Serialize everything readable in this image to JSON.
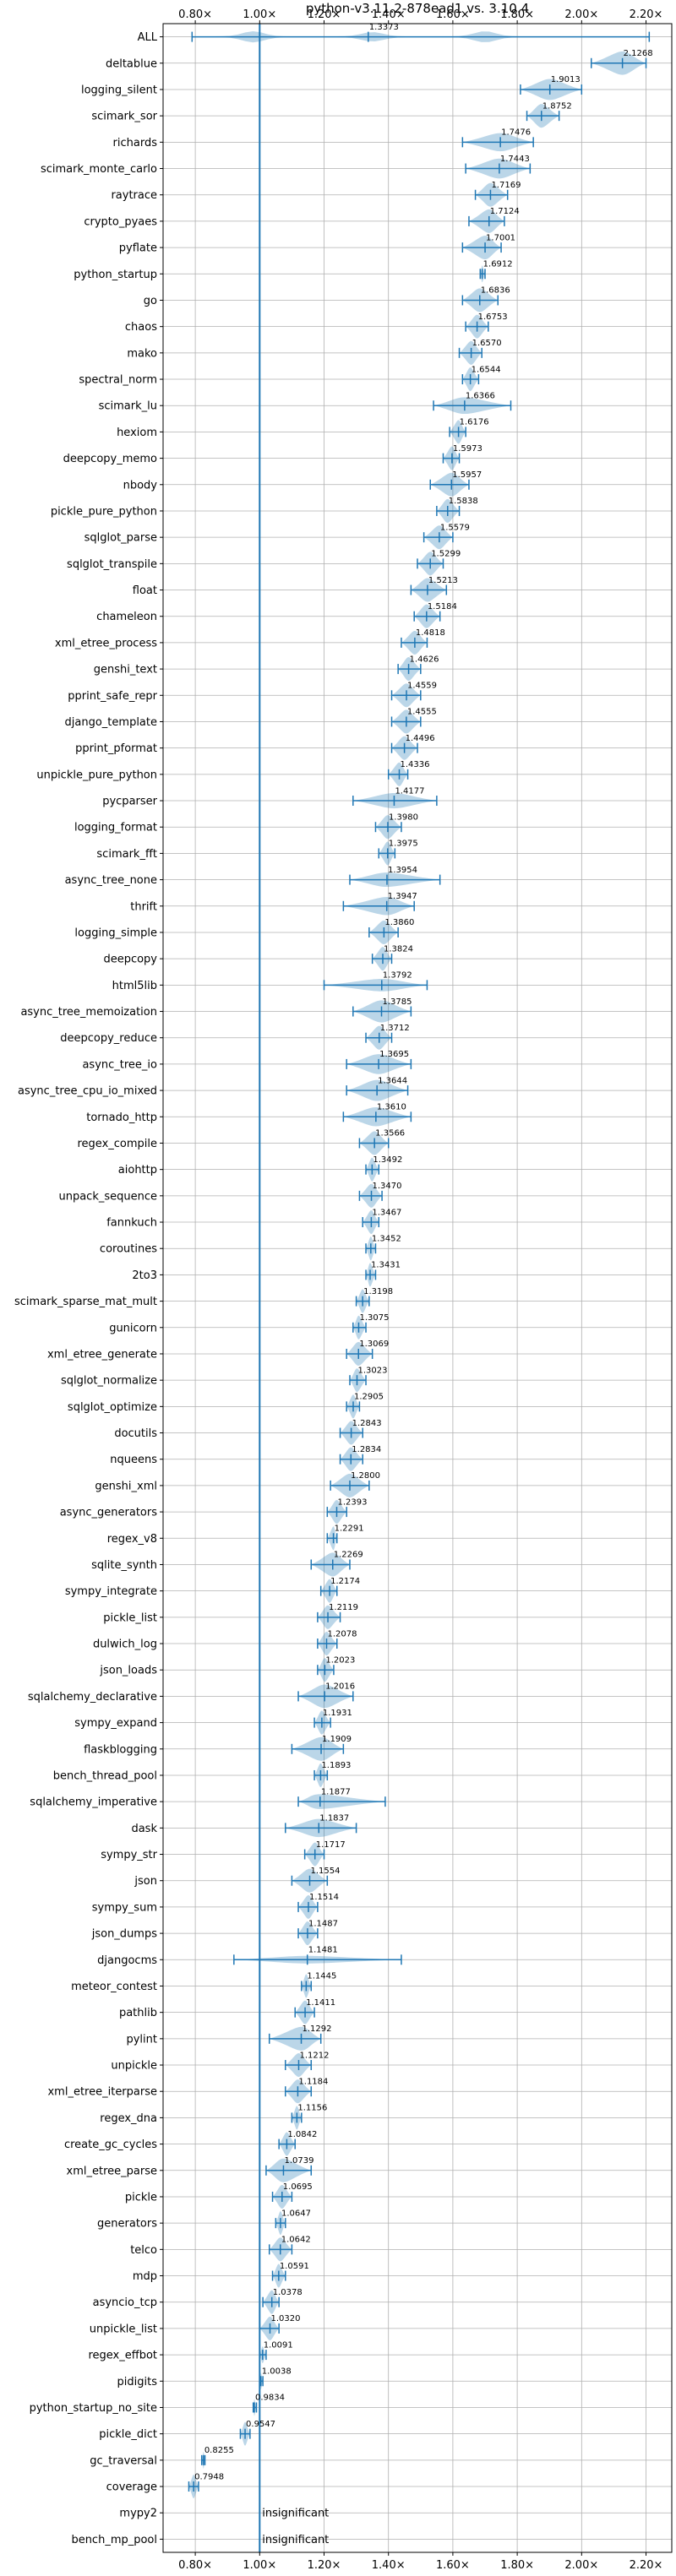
{
  "chart_data": {
    "type": "violin",
    "title": "python-v3.11.2-878ead1 vs. 3.10.4",
    "orientation": "horizontal",
    "x_range": [
      0.7,
      2.28
    ],
    "x_ticks": [
      0.8,
      1.0,
      1.2,
      1.4,
      1.6,
      1.8,
      2.0,
      2.2
    ],
    "x_tick_labels": [
      "0.80×",
      "1.00×",
      "1.20×",
      "1.40×",
      "1.60×",
      "1.80×",
      "2.00×",
      "2.20×"
    ],
    "x_tick_labels_top": true,
    "x_tick_labels_bottom": true,
    "reference_line": 1.0,
    "grid": true,
    "insignificant_label": "insignificant",
    "benchmarks": [
      {
        "name": "ALL",
        "value": 1.3373,
        "label": "1.3373",
        "min": 0.79,
        "max": 2.21
      },
      {
        "name": "deltablue",
        "value": 2.1268,
        "label": "2.1268",
        "min": 2.03,
        "max": 2.2
      },
      {
        "name": "logging_silent",
        "value": 1.9013,
        "label": "1.9013",
        "min": 1.81,
        "max": 2.0
      },
      {
        "name": "scimark_sor",
        "value": 1.8752,
        "label": "1.8752",
        "min": 1.83,
        "max": 1.93
      },
      {
        "name": "richards",
        "value": 1.7476,
        "label": "1.7476",
        "min": 1.63,
        "max": 1.85
      },
      {
        "name": "scimark_monte_carlo",
        "value": 1.7443,
        "label": "1.7443",
        "min": 1.64,
        "max": 1.84
      },
      {
        "name": "raytrace",
        "value": 1.7169,
        "label": "1.7169",
        "min": 1.67,
        "max": 1.77
      },
      {
        "name": "crypto_pyaes",
        "value": 1.7124,
        "label": "1.7124",
        "min": 1.65,
        "max": 1.76
      },
      {
        "name": "pyflate",
        "value": 1.7001,
        "label": "1.7001",
        "min": 1.63,
        "max": 1.75
      },
      {
        "name": "python_startup",
        "value": 1.6912,
        "label": "1.6912",
        "min": 1.685,
        "max": 1.7
      },
      {
        "name": "go",
        "value": 1.6836,
        "label": "1.6836",
        "min": 1.63,
        "max": 1.74
      },
      {
        "name": "chaos",
        "value": 1.6753,
        "label": "1.6753",
        "min": 1.64,
        "max": 1.71
      },
      {
        "name": "mako",
        "value": 1.657,
        "label": "1.6570",
        "min": 1.62,
        "max": 1.69
      },
      {
        "name": "spectral_norm",
        "value": 1.6544,
        "label": "1.6544",
        "min": 1.63,
        "max": 1.68
      },
      {
        "name": "scimark_lu",
        "value": 1.6366,
        "label": "1.6366",
        "min": 1.54,
        "max": 1.78
      },
      {
        "name": "hexiom",
        "value": 1.6176,
        "label": "1.6176",
        "min": 1.59,
        "max": 1.64
      },
      {
        "name": "deepcopy_memo",
        "value": 1.5973,
        "label": "1.5973",
        "min": 1.57,
        "max": 1.62
      },
      {
        "name": "nbody",
        "value": 1.5957,
        "label": "1.5957",
        "min": 1.53,
        "max": 1.65
      },
      {
        "name": "pickle_pure_python",
        "value": 1.5838,
        "label": "1.5838",
        "min": 1.55,
        "max": 1.62
      },
      {
        "name": "sqlglot_parse",
        "value": 1.5579,
        "label": "1.5579",
        "min": 1.51,
        "max": 1.6
      },
      {
        "name": "sqlglot_transpile",
        "value": 1.5299,
        "label": "1.5299",
        "min": 1.49,
        "max": 1.57
      },
      {
        "name": "float",
        "value": 1.5213,
        "label": "1.5213",
        "min": 1.47,
        "max": 1.58
      },
      {
        "name": "chameleon",
        "value": 1.5184,
        "label": "1.5184",
        "min": 1.48,
        "max": 1.56
      },
      {
        "name": "xml_etree_process",
        "value": 1.4818,
        "label": "1.4818",
        "min": 1.44,
        "max": 1.52
      },
      {
        "name": "genshi_text",
        "value": 1.4626,
        "label": "1.4626",
        "min": 1.43,
        "max": 1.5
      },
      {
        "name": "pprint_safe_repr",
        "value": 1.4559,
        "label": "1.4559",
        "min": 1.41,
        "max": 1.5
      },
      {
        "name": "django_template",
        "value": 1.4555,
        "label": "1.4555",
        "min": 1.41,
        "max": 1.5
      },
      {
        "name": "pprint_pformat",
        "value": 1.4496,
        "label": "1.4496",
        "min": 1.41,
        "max": 1.49
      },
      {
        "name": "unpickle_pure_python",
        "value": 1.4336,
        "label": "1.4336",
        "min": 1.4,
        "max": 1.46
      },
      {
        "name": "pycparser",
        "value": 1.4177,
        "label": "1.4177",
        "min": 1.29,
        "max": 1.55
      },
      {
        "name": "logging_format",
        "value": 1.398,
        "label": "1.3980",
        "min": 1.36,
        "max": 1.44
      },
      {
        "name": "scimark_fft",
        "value": 1.3975,
        "label": "1.3975",
        "min": 1.37,
        "max": 1.42
      },
      {
        "name": "async_tree_none",
        "value": 1.3954,
        "label": "1.3954",
        "min": 1.28,
        "max": 1.56
      },
      {
        "name": "thrift",
        "value": 1.3947,
        "label": "1.3947",
        "min": 1.26,
        "max": 1.48
      },
      {
        "name": "logging_simple",
        "value": 1.386,
        "label": "1.3860",
        "min": 1.34,
        "max": 1.43
      },
      {
        "name": "deepcopy",
        "value": 1.3824,
        "label": "1.3824",
        "min": 1.35,
        "max": 1.41
      },
      {
        "name": "html5lib",
        "value": 1.3792,
        "label": "1.3792",
        "min": 1.2,
        "max": 1.52
      },
      {
        "name": "async_tree_memoization",
        "value": 1.3785,
        "label": "1.3785",
        "min": 1.29,
        "max": 1.47
      },
      {
        "name": "deepcopy_reduce",
        "value": 1.3712,
        "label": "1.3712",
        "min": 1.33,
        "max": 1.41
      },
      {
        "name": "async_tree_io",
        "value": 1.3695,
        "label": "1.3695",
        "min": 1.27,
        "max": 1.47
      },
      {
        "name": "async_tree_cpu_io_mixed",
        "value": 1.3644,
        "label": "1.3644",
        "min": 1.27,
        "max": 1.46
      },
      {
        "name": "tornado_http",
        "value": 1.361,
        "label": "1.3610",
        "min": 1.26,
        "max": 1.47
      },
      {
        "name": "regex_compile",
        "value": 1.3566,
        "label": "1.3566",
        "min": 1.31,
        "max": 1.4
      },
      {
        "name": "aiohttp",
        "value": 1.3492,
        "label": "1.3492",
        "min": 1.33,
        "max": 1.37
      },
      {
        "name": "unpack_sequence",
        "value": 1.347,
        "label": "1.3470",
        "min": 1.31,
        "max": 1.38
      },
      {
        "name": "fannkuch",
        "value": 1.3467,
        "label": "1.3467",
        "min": 1.32,
        "max": 1.37
      },
      {
        "name": "coroutines",
        "value": 1.3452,
        "label": "1.3452",
        "min": 1.33,
        "max": 1.36
      },
      {
        "name": "2to3",
        "value": 1.3431,
        "label": "1.3431",
        "min": 1.33,
        "max": 1.36
      },
      {
        "name": "scimark_sparse_mat_mult",
        "value": 1.3198,
        "label": "1.3198",
        "min": 1.3,
        "max": 1.34
      },
      {
        "name": "gunicorn",
        "value": 1.3075,
        "label": "1.3075",
        "min": 1.29,
        "max": 1.33
      },
      {
        "name": "xml_etree_generate",
        "value": 1.3069,
        "label": "1.3069",
        "min": 1.27,
        "max": 1.35
      },
      {
        "name": "sqlglot_normalize",
        "value": 1.3023,
        "label": "1.3023",
        "min": 1.28,
        "max": 1.33
      },
      {
        "name": "sqlglot_optimize",
        "value": 1.2905,
        "label": "1.2905",
        "min": 1.27,
        "max": 1.31
      },
      {
        "name": "docutils",
        "value": 1.2843,
        "label": "1.2843",
        "min": 1.25,
        "max": 1.32
      },
      {
        "name": "nqueens",
        "value": 1.2834,
        "label": "1.2834",
        "min": 1.25,
        "max": 1.32
      },
      {
        "name": "genshi_xml",
        "value": 1.28,
        "label": "1.2800",
        "min": 1.22,
        "max": 1.34
      },
      {
        "name": "async_generators",
        "value": 1.2393,
        "label": "1.2393",
        "min": 1.21,
        "max": 1.27
      },
      {
        "name": "regex_v8",
        "value": 1.2291,
        "label": "1.2291",
        "min": 1.21,
        "max": 1.24
      },
      {
        "name": "sqlite_synth",
        "value": 1.2269,
        "label": "1.2269",
        "min": 1.16,
        "max": 1.28
      },
      {
        "name": "sympy_integrate",
        "value": 1.2174,
        "label": "1.2174",
        "min": 1.19,
        "max": 1.24
      },
      {
        "name": "pickle_list",
        "value": 1.2119,
        "label": "1.2119",
        "min": 1.18,
        "max": 1.25
      },
      {
        "name": "dulwich_log",
        "value": 1.2078,
        "label": "1.2078",
        "min": 1.18,
        "max": 1.24
      },
      {
        "name": "json_loads",
        "value": 1.2023,
        "label": "1.2023",
        "min": 1.18,
        "max": 1.23
      },
      {
        "name": "sqlalchemy_declarative",
        "value": 1.2016,
        "label": "1.2016",
        "min": 1.12,
        "max": 1.29
      },
      {
        "name": "sympy_expand",
        "value": 1.1931,
        "label": "1.1931",
        "min": 1.17,
        "max": 1.22
      },
      {
        "name": "flaskblogging",
        "value": 1.1909,
        "label": "1.1909",
        "min": 1.1,
        "max": 1.26
      },
      {
        "name": "bench_thread_pool",
        "value": 1.1893,
        "label": "1.1893",
        "min": 1.17,
        "max": 1.21
      },
      {
        "name": "sqlalchemy_imperative",
        "value": 1.1877,
        "label": "1.1877",
        "min": 1.12,
        "max": 1.39
      },
      {
        "name": "dask",
        "value": 1.1837,
        "label": "1.1837",
        "min": 1.08,
        "max": 1.3
      },
      {
        "name": "sympy_str",
        "value": 1.1717,
        "label": "1.1717",
        "min": 1.14,
        "max": 1.2
      },
      {
        "name": "json",
        "value": 1.1554,
        "label": "1.1554",
        "min": 1.1,
        "max": 1.21
      },
      {
        "name": "sympy_sum",
        "value": 1.1514,
        "label": "1.1514",
        "min": 1.12,
        "max": 1.18
      },
      {
        "name": "json_dumps",
        "value": 1.1487,
        "label": "1.1487",
        "min": 1.12,
        "max": 1.18
      },
      {
        "name": "djangocms",
        "value": 1.1481,
        "label": "1.1481",
        "min": 0.92,
        "max": 1.44
      },
      {
        "name": "meteor_contest",
        "value": 1.1445,
        "label": "1.1445",
        "min": 1.13,
        "max": 1.16
      },
      {
        "name": "pathlib",
        "value": 1.1411,
        "label": "1.1411",
        "min": 1.11,
        "max": 1.17
      },
      {
        "name": "pylint",
        "value": 1.1292,
        "label": "1.1292",
        "min": 1.03,
        "max": 1.19
      },
      {
        "name": "unpickle",
        "value": 1.1212,
        "label": "1.1212",
        "min": 1.08,
        "max": 1.16
      },
      {
        "name": "xml_etree_iterparse",
        "value": 1.1184,
        "label": "1.1184",
        "min": 1.08,
        "max": 1.16
      },
      {
        "name": "regex_dna",
        "value": 1.1156,
        "label": "1.1156",
        "min": 1.1,
        "max": 1.13
      },
      {
        "name": "create_gc_cycles",
        "value": 1.0842,
        "label": "1.0842",
        "min": 1.06,
        "max": 1.11
      },
      {
        "name": "xml_etree_parse",
        "value": 1.0739,
        "label": "1.0739",
        "min": 1.02,
        "max": 1.16
      },
      {
        "name": "pickle",
        "value": 1.0695,
        "label": "1.0695",
        "min": 1.04,
        "max": 1.1
      },
      {
        "name": "generators",
        "value": 1.0647,
        "label": "1.0647",
        "min": 1.05,
        "max": 1.08
      },
      {
        "name": "telco",
        "value": 1.0642,
        "label": "1.0642",
        "min": 1.03,
        "max": 1.1
      },
      {
        "name": "mdp",
        "value": 1.0591,
        "label": "1.0591",
        "min": 1.04,
        "max": 1.08
      },
      {
        "name": "asyncio_tcp",
        "value": 1.0378,
        "label": "1.0378",
        "min": 1.01,
        "max": 1.06
      },
      {
        "name": "unpickle_list",
        "value": 1.032,
        "label": "1.0320",
        "min": 1.0,
        "max": 1.06
      },
      {
        "name": "regex_effbot",
        "value": 1.0091,
        "label": "1.0091",
        "min": 1.0,
        "max": 1.02
      },
      {
        "name": "pidigits",
        "value": 1.0038,
        "label": "1.0038",
        "min": 1.0,
        "max": 1.01
      },
      {
        "name": "python_startup_no_site",
        "value": 0.9834,
        "label": "0.9834",
        "min": 0.98,
        "max": 0.99
      },
      {
        "name": "pickle_dict",
        "value": 0.9547,
        "label": "0.9547",
        "min": 0.94,
        "max": 0.97
      },
      {
        "name": "gc_traversal",
        "value": 0.8255,
        "label": "0.8255",
        "min": 0.82,
        "max": 0.83
      },
      {
        "name": "coverage",
        "value": 0.7948,
        "label": "0.7948",
        "min": 0.78,
        "max": 0.81
      },
      {
        "name": "mypy2",
        "value": null,
        "label": "insignificant",
        "insignificant": true
      },
      {
        "name": "bench_mp_pool",
        "value": null,
        "label": "insignificant",
        "insignificant": true
      }
    ]
  }
}
